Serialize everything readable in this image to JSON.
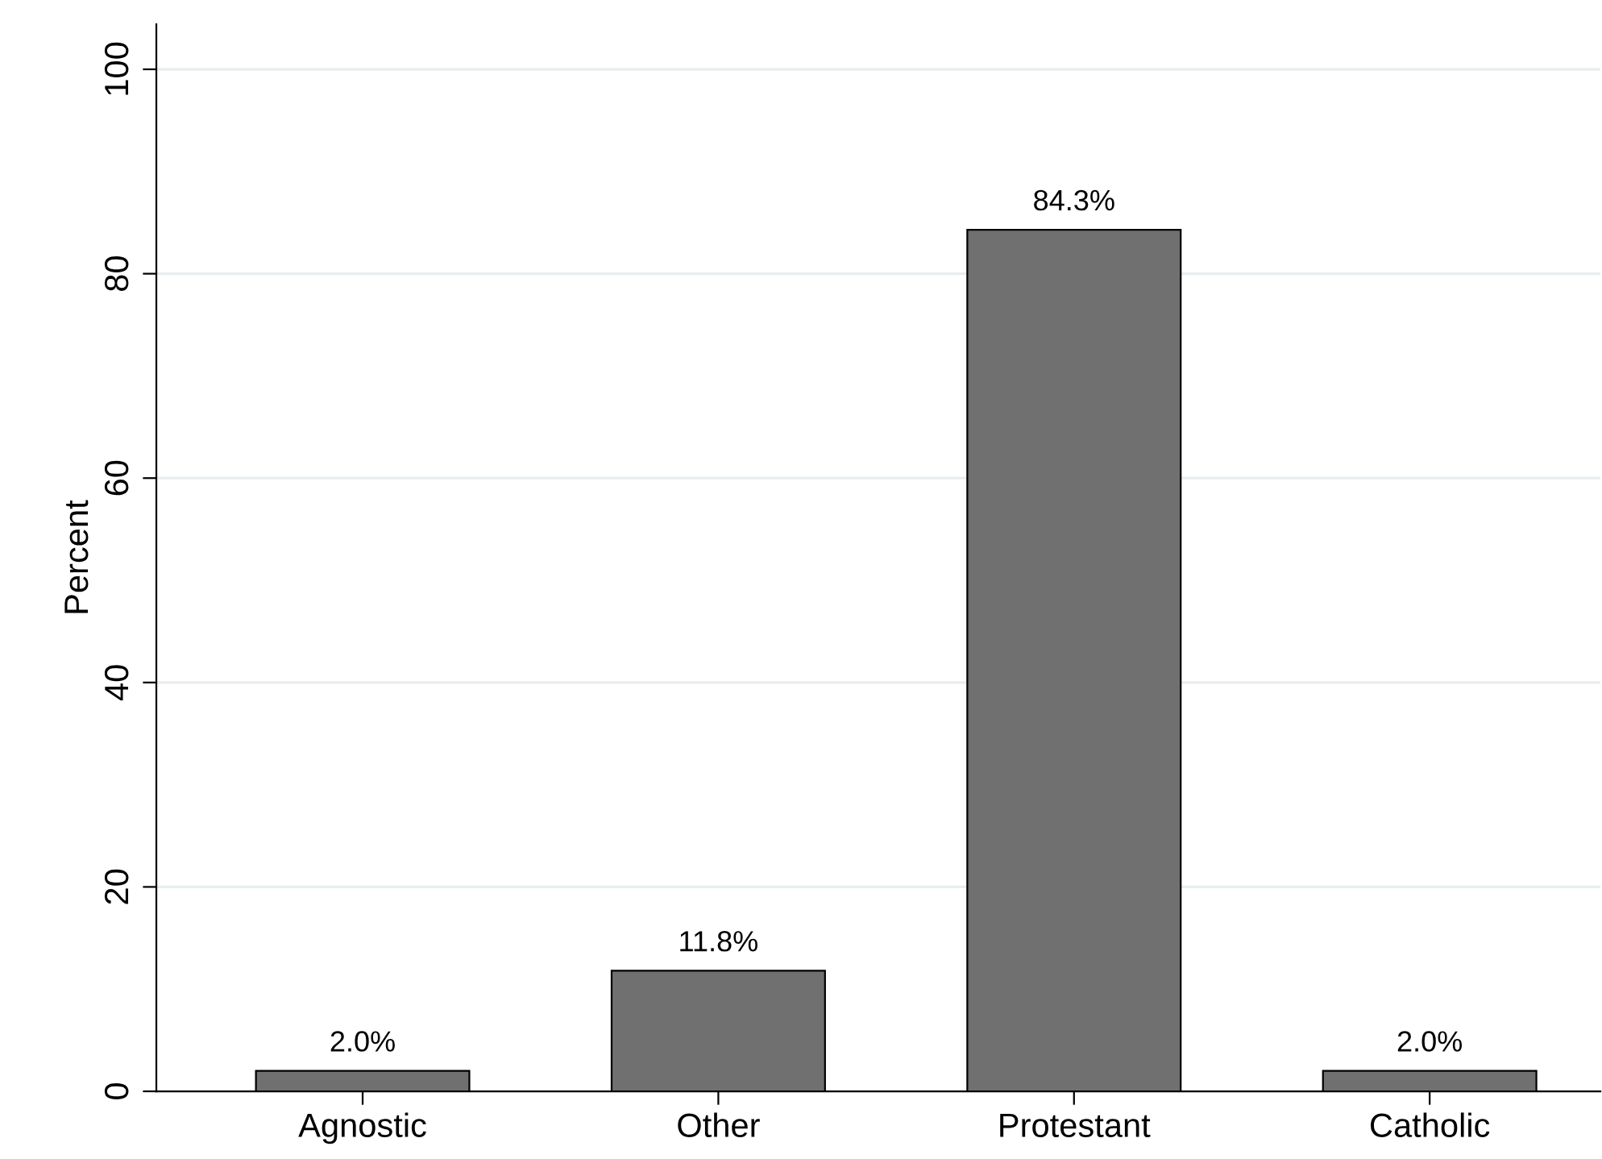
{
  "chart_data": {
    "type": "bar",
    "ylabel": "Percent",
    "categories": [
      "Agnostic",
      "Other",
      "Protestant",
      "Catholic"
    ],
    "values": [
      2.0,
      11.8,
      84.3,
      2.0
    ],
    "value_labels": [
      "2.0%",
      "11.8%",
      "84.3%",
      "2.0%"
    ],
    "color": "#707070",
    "ylim": [
      0,
      104.4
    ],
    "yticks": [
      0,
      20,
      40,
      60,
      80,
      100
    ],
    "grid": "y",
    "legend": false
  }
}
